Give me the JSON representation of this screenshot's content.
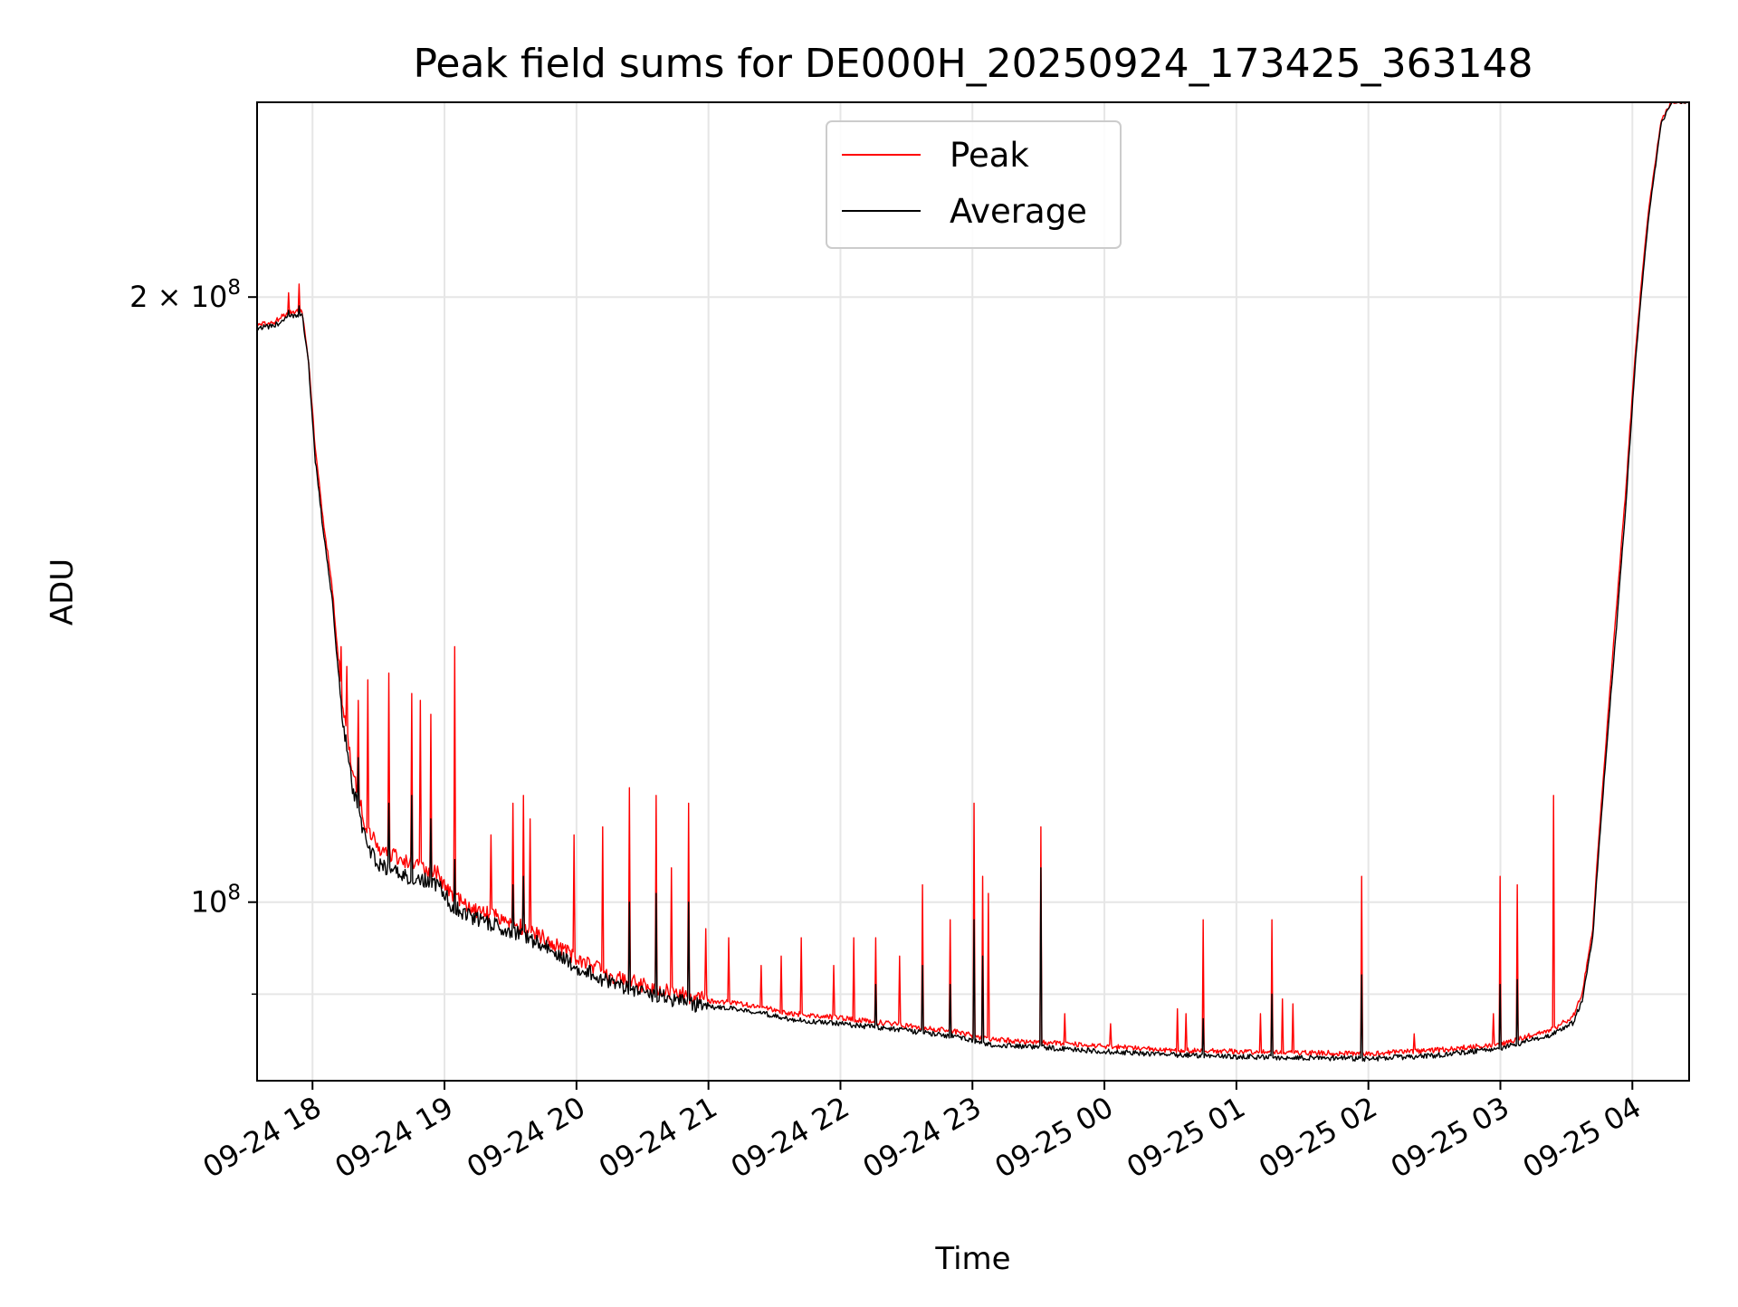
{
  "chart_data": {
    "type": "line",
    "title": "Peak field sums for DE000H_20250924_173425_363148",
    "xlabel": "Time",
    "ylabel": "ADU",
    "yscale": "log",
    "ylim": [
      81500000,
      250000000
    ],
    "xlim": [
      17.58,
      28.43
    ],
    "grid": true,
    "legend_position": "top-center",
    "x_ticks": [
      {
        "value": 18,
        "label": "09-24 18"
      },
      {
        "value": 19,
        "label": "09-24 19"
      },
      {
        "value": 20,
        "label": "09-24 20"
      },
      {
        "value": 21,
        "label": "09-24 21"
      },
      {
        "value": 22,
        "label": "09-24 22"
      },
      {
        "value": 23,
        "label": "09-24 23"
      },
      {
        "value": 24,
        "label": "09-25 00"
      },
      {
        "value": 25,
        "label": "09-25 01"
      },
      {
        "value": 26,
        "label": "09-25 02"
      },
      {
        "value": 27,
        "label": "09-25 03"
      },
      {
        "value": 28,
        "label": "09-25 04"
      }
    ],
    "y_major_ticks": [
      {
        "value": 100000000,
        "base": "10",
        "exp": "8",
        "prefix": ""
      },
      {
        "value": 200000000,
        "base": "10",
        "exp": "8",
        "prefix": "2 × "
      }
    ],
    "y_minor_ticks": [
      90000000,
      300000000
    ],
    "series": [
      {
        "name": "Peak",
        "color": "#ff0000",
        "baseline": [
          [
            17.58,
            193500000
          ],
          [
            17.7,
            194000000
          ],
          [
            17.8,
            196000000
          ],
          [
            17.92,
            197000000
          ],
          [
            17.97,
            186000000
          ],
          [
            18.02,
            168000000
          ],
          [
            18.08,
            155000000
          ],
          [
            18.15,
            143000000
          ],
          [
            18.22,
            126000000
          ],
          [
            18.3,
            116000000
          ],
          [
            18.4,
            109000000
          ],
          [
            18.5,
            106000000
          ],
          [
            18.7,
            104500000
          ],
          [
            18.95,
            103000000
          ],
          [
            19.05,
            100500000
          ],
          [
            19.2,
            99000000
          ],
          [
            19.5,
            97500000
          ],
          [
            19.8,
            95500000
          ],
          [
            20.0,
            93500000
          ],
          [
            20.3,
            91500000
          ],
          [
            20.6,
            90300000
          ],
          [
            20.9,
            89400000
          ],
          [
            21.2,
            89000000
          ],
          [
            21.4,
            88600000
          ],
          [
            21.6,
            88000000
          ],
          [
            22.0,
            87500000
          ],
          [
            22.4,
            86900000
          ],
          [
            22.9,
            86100000
          ],
          [
            23.1,
            85400000
          ],
          [
            23.5,
            85100000
          ],
          [
            24.0,
            84700000
          ],
          [
            24.5,
            84300000
          ],
          [
            25.0,
            84200000
          ],
          [
            25.5,
            84100000
          ],
          [
            26.0,
            84000000
          ],
          [
            26.5,
            84300000
          ],
          [
            27.0,
            84900000
          ],
          [
            27.4,
            86400000
          ],
          [
            27.55,
            87600000
          ],
          [
            27.62,
            90000000
          ],
          [
            27.7,
            97000000
          ],
          [
            27.8,
            120000000
          ],
          [
            27.88,
            140000000
          ],
          [
            27.95,
            160000000
          ],
          [
            28.03,
            190000000
          ],
          [
            28.12,
            220000000
          ],
          [
            28.22,
            245000000
          ],
          [
            28.3,
            250000000
          ],
          [
            28.43,
            250000000
          ]
        ],
        "spikes": [
          [
            17.82,
            201000000
          ],
          [
            17.9,
            203000000
          ],
          [
            18.22,
            134000000
          ],
          [
            18.26,
            131000000
          ],
          [
            18.35,
            126000000
          ],
          [
            18.42,
            129000000
          ],
          [
            18.58,
            130000000
          ],
          [
            18.75,
            127000000
          ],
          [
            18.82,
            126000000
          ],
          [
            18.9,
            124000000
          ],
          [
            19.08,
            134000000
          ],
          [
            19.35,
            108000000
          ],
          [
            19.52,
            112000000
          ],
          [
            19.6,
            113000000
          ],
          [
            19.65,
            110000000
          ],
          [
            19.98,
            108000000
          ],
          [
            20.2,
            109000000
          ],
          [
            20.4,
            114000000
          ],
          [
            20.6,
            113000000
          ],
          [
            20.72,
            104000000
          ],
          [
            20.85,
            112000000
          ],
          [
            20.98,
            97000000
          ],
          [
            21.15,
            96000000
          ],
          [
            21.4,
            93000000
          ],
          [
            21.55,
            94000000
          ],
          [
            21.7,
            96000000
          ],
          [
            21.95,
            93000000
          ],
          [
            22.1,
            96000000
          ],
          [
            22.27,
            96000000
          ],
          [
            22.45,
            94000000
          ],
          [
            22.62,
            102000000
          ],
          [
            22.83,
            98000000
          ],
          [
            23.01,
            112000000
          ],
          [
            23.08,
            103000000
          ],
          [
            23.12,
            101000000
          ],
          [
            23.52,
            109000000
          ],
          [
            23.7,
            88000000
          ],
          [
            24.05,
            87000000
          ],
          [
            24.55,
            88500000
          ],
          [
            24.62,
            88000000
          ],
          [
            24.75,
            98000000
          ],
          [
            25.18,
            88000000
          ],
          [
            25.27,
            98000000
          ],
          [
            25.35,
            89500000
          ],
          [
            25.43,
            89000000
          ],
          [
            25.95,
            103000000
          ],
          [
            26.35,
            86000000
          ],
          [
            26.95,
            88000000
          ],
          [
            27.0,
            103000000
          ],
          [
            27.13,
            102000000
          ],
          [
            27.4,
            113000000
          ],
          [
            27.75,
            97000000
          ],
          [
            27.93,
            150000000
          ]
        ]
      },
      {
        "name": "Average",
        "color": "#000000",
        "baseline": [
          [
            17.58,
            193000000
          ],
          [
            17.7,
            193200000
          ],
          [
            17.8,
            195000000
          ],
          [
            17.92,
            196200000
          ],
          [
            17.97,
            185000000
          ],
          [
            18.02,
            166000000
          ],
          [
            18.08,
            153000000
          ],
          [
            18.15,
            141000000
          ],
          [
            18.22,
            124000000
          ],
          [
            18.3,
            114000000
          ],
          [
            18.4,
            107000000
          ],
          [
            18.5,
            104000000
          ],
          [
            18.7,
            102800000
          ],
          [
            18.95,
            101800000
          ],
          [
            19.05,
            99500000
          ],
          [
            19.2,
            98000000
          ],
          [
            19.5,
            96600000
          ],
          [
            19.8,
            94500000
          ],
          [
            20.0,
            92600000
          ],
          [
            20.3,
            90700000
          ],
          [
            20.6,
            89600000
          ],
          [
            20.9,
            88700000
          ],
          [
            21.2,
            88400000
          ],
          [
            21.4,
            88000000
          ],
          [
            21.6,
            87400000
          ],
          [
            22.0,
            86900000
          ],
          [
            22.4,
            86400000
          ],
          [
            22.9,
            85600000
          ],
          [
            23.1,
            84900000
          ],
          [
            23.5,
            84600000
          ],
          [
            24.0,
            84200000
          ],
          [
            24.5,
            83900000
          ],
          [
            25.0,
            83700000
          ],
          [
            25.5,
            83600000
          ],
          [
            26.0,
            83500000
          ],
          [
            26.5,
            83800000
          ],
          [
            27.0,
            84500000
          ],
          [
            27.4,
            85900000
          ],
          [
            27.55,
            87000000
          ],
          [
            27.62,
            89300000
          ],
          [
            27.7,
            96000000
          ],
          [
            27.8,
            118000000
          ],
          [
            27.88,
            137000000
          ],
          [
            27.95,
            157000000
          ],
          [
            28.03,
            188000000
          ],
          [
            28.12,
            218000000
          ],
          [
            28.22,
            244000000
          ],
          [
            28.3,
            250000000
          ],
          [
            28.43,
            250000000
          ]
        ],
        "spikes": [
          [
            17.82,
            197000000
          ],
          [
            17.9,
            198000000
          ],
          [
            18.22,
            126000000
          ],
          [
            18.35,
            118000000
          ],
          [
            18.58,
            112000000
          ],
          [
            18.75,
            113000000
          ],
          [
            18.9,
            110000000
          ],
          [
            19.08,
            105000000
          ],
          [
            19.52,
            102000000
          ],
          [
            19.6,
            103000000
          ],
          [
            20.4,
            100000000
          ],
          [
            20.6,
            101000000
          ],
          [
            20.85,
            100000000
          ],
          [
            22.27,
            91000000
          ],
          [
            22.62,
            93000000
          ],
          [
            22.83,
            91000000
          ],
          [
            23.01,
            98000000
          ],
          [
            23.08,
            94000000
          ],
          [
            23.52,
            104000000
          ],
          [
            24.75,
            87500000
          ],
          [
            25.27,
            90000000
          ],
          [
            25.95,
            92000000
          ],
          [
            27.0,
            91000000
          ],
          [
            27.13,
            91500000
          ]
        ]
      }
    ]
  }
}
